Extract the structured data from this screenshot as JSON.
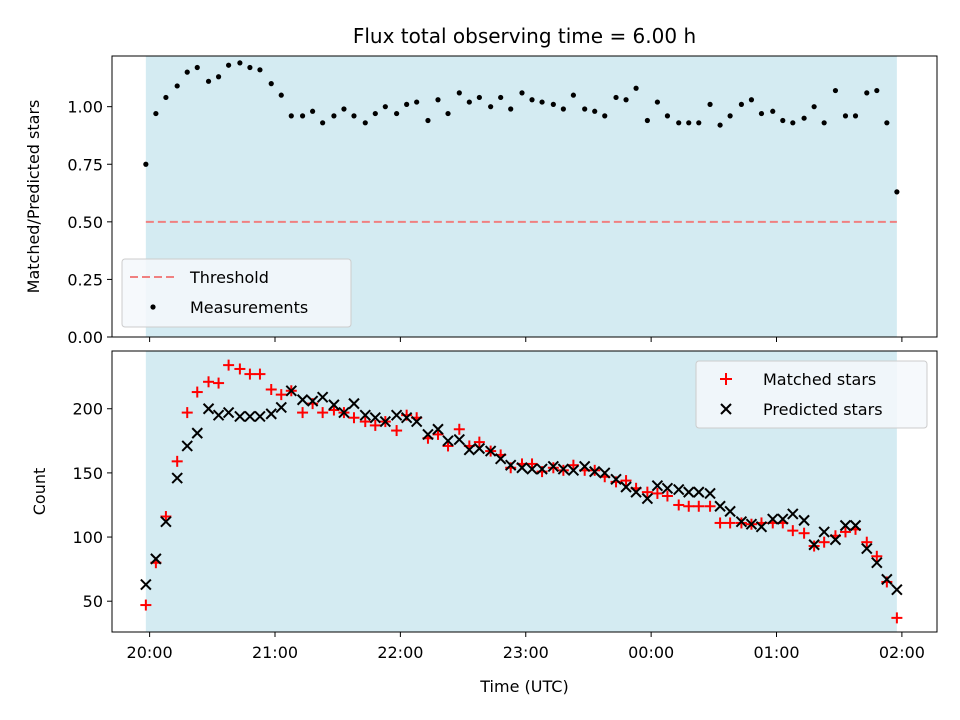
{
  "chart_data": [
    {
      "type": "scatter",
      "title": "Flux total observing time = 6.00 h",
      "ylabel": "Matched/Predicted stars",
      "ylim": [
        0,
        1.22
      ],
      "yticks": [
        "0.00",
        "0.25",
        "0.50",
        "0.75",
        "1.00"
      ],
      "ytick_values": [
        0,
        0.25,
        0.5,
        0.75,
        1.0
      ],
      "shaded_span_hours": [
        19.97,
        25.96
      ],
      "shaded_color": "#d4ebf2",
      "threshold": {
        "name": "Threshold",
        "value": 0.5,
        "x_range_hours": [
          19.97,
          25.96
        ],
        "color": "#f08080"
      },
      "series": [
        {
          "name": "Measurements",
          "color": "#000000",
          "x_hours": [
            19.97,
            20.05,
            20.13,
            20.22,
            20.3,
            20.38,
            20.47,
            20.55,
            20.63,
            20.72,
            20.8,
            20.88,
            20.97,
            21.05,
            21.13,
            21.22,
            21.3,
            21.38,
            21.47,
            21.55,
            21.63,
            21.72,
            21.8,
            21.88,
            21.97,
            22.05,
            22.13,
            22.22,
            22.3,
            22.38,
            22.47,
            22.55,
            22.63,
            22.72,
            22.8,
            22.88,
            22.97,
            23.05,
            23.13,
            23.22,
            23.3,
            23.38,
            23.47,
            23.55,
            23.63,
            23.72,
            23.8,
            23.88,
            23.97,
            24.05,
            24.13,
            24.22,
            24.3,
            24.38,
            24.47,
            24.55,
            24.63,
            24.72,
            24.8,
            24.88,
            24.97,
            25.05,
            25.13,
            25.22,
            25.3,
            25.38,
            25.47,
            25.55,
            25.63,
            25.72,
            25.8,
            25.88,
            25.96
          ],
          "y": [
            0.75,
            0.97,
            1.04,
            1.09,
            1.15,
            1.17,
            1.11,
            1.13,
            1.18,
            1.19,
            1.17,
            1.16,
            1.1,
            1.05,
            0.96,
            0.96,
            0.98,
            0.93,
            0.96,
            0.99,
            0.96,
            0.93,
            0.97,
            1.0,
            0.97,
            1.01,
            1.02,
            0.94,
            1.03,
            0.97,
            1.06,
            1.02,
            1.04,
            1.0,
            1.04,
            0.99,
            1.06,
            1.03,
            1.02,
            1.01,
            0.99,
            1.05,
            0.99,
            0.98,
            0.96,
            1.04,
            1.03,
            1.08,
            0.94,
            1.02,
            0.96,
            0.93,
            0.93,
            0.93,
            1.01,
            0.92,
            0.96,
            1.01,
            1.03,
            0.97,
            0.98,
            0.94,
            0.93,
            0.95,
            1.0,
            0.93,
            1.07,
            0.96,
            0.96,
            1.06,
            1.07,
            0.93,
            0.63
          ]
        }
      ],
      "legend": {
        "placement": "lower-left",
        "entries": [
          "Threshold",
          "Measurements"
        ]
      },
      "grid": false
    },
    {
      "type": "scatter",
      "xlabel": "Time (UTC)",
      "ylabel": "Count",
      "ylim": [
        26,
        245
      ],
      "yticks": [
        "50",
        "100",
        "150",
        "200"
      ],
      "ytick_values": [
        50,
        100,
        150,
        200
      ],
      "xlim_hours": [
        19.7,
        26.28
      ],
      "xticks": [
        "20:00",
        "21:00",
        "22:00",
        "23:00",
        "00:00",
        "01:00",
        "02:00"
      ],
      "xtick_hours": [
        20,
        21,
        22,
        23,
        24,
        25,
        26
      ],
      "shaded_span_hours": [
        19.97,
        25.96
      ],
      "series": [
        {
          "name": "Matched stars",
          "color": "#ff0000",
          "marker": "plus",
          "x_hours": [
            19.97,
            20.05,
            20.13,
            20.22,
            20.3,
            20.38,
            20.47,
            20.55,
            20.63,
            20.72,
            20.8,
            20.88,
            20.97,
            21.05,
            21.13,
            21.22,
            21.3,
            21.38,
            21.47,
            21.55,
            21.63,
            21.72,
            21.8,
            21.88,
            21.97,
            22.05,
            22.13,
            22.22,
            22.3,
            22.38,
            22.47,
            22.55,
            22.63,
            22.72,
            22.8,
            22.88,
            22.97,
            23.05,
            23.13,
            23.22,
            23.3,
            23.38,
            23.47,
            23.55,
            23.63,
            23.72,
            23.8,
            23.88,
            23.97,
            24.05,
            24.13,
            24.22,
            24.3,
            24.38,
            24.47,
            24.55,
            24.63,
            24.72,
            24.8,
            24.88,
            24.97,
            25.05,
            25.13,
            25.22,
            25.3,
            25.38,
            25.47,
            25.55,
            25.63,
            25.72,
            25.8,
            25.88,
            25.96
          ],
          "y": [
            47,
            80,
            116,
            159,
            197,
            213,
            221,
            220,
            234,
            231,
            227,
            227,
            215,
            211,
            214,
            197,
            204,
            197,
            199,
            197,
            193,
            190,
            187,
            190,
            183,
            195,
            193,
            177,
            180,
            171,
            184,
            171,
            174,
            167,
            164,
            154,
            157,
            157,
            151,
            154,
            152,
            156,
            152,
            152,
            147,
            143,
            144,
            138,
            135,
            134,
            132,
            125,
            124,
            124,
            124,
            111,
            111,
            111,
            110,
            111,
            111,
            111,
            105,
            103,
            93,
            96,
            101,
            104,
            106,
            96,
            85,
            65,
            37
          ]
        },
        {
          "name": "Predicted stars",
          "color": "#000000",
          "marker": "x",
          "x_hours": [
            19.97,
            20.05,
            20.13,
            20.22,
            20.3,
            20.38,
            20.47,
            20.55,
            20.63,
            20.72,
            20.8,
            20.88,
            20.97,
            21.05,
            21.13,
            21.22,
            21.3,
            21.38,
            21.47,
            21.55,
            21.63,
            21.72,
            21.8,
            21.88,
            21.97,
            22.05,
            22.13,
            22.22,
            22.3,
            22.38,
            22.47,
            22.55,
            22.63,
            22.72,
            22.8,
            22.88,
            22.97,
            23.05,
            23.13,
            23.22,
            23.3,
            23.38,
            23.47,
            23.55,
            23.63,
            23.72,
            23.8,
            23.88,
            23.97,
            24.05,
            24.13,
            24.22,
            24.3,
            24.38,
            24.47,
            24.55,
            24.63,
            24.72,
            24.8,
            24.88,
            24.97,
            25.05,
            25.13,
            25.22,
            25.3,
            25.38,
            25.47,
            25.55,
            25.63,
            25.72,
            25.8,
            25.88,
            25.96
          ],
          "y": [
            63,
            83,
            112,
            146,
            171,
            181,
            200,
            195,
            197,
            194,
            194,
            194,
            196,
            201,
            214,
            207,
            206,
            209,
            203,
            197,
            204,
            195,
            193,
            190,
            195,
            193,
            190,
            180,
            184,
            175,
            176,
            168,
            169,
            167,
            161,
            156,
            154,
            153,
            153,
            155,
            153,
            152,
            155,
            151,
            150,
            145,
            139,
            135,
            130,
            140,
            138,
            137,
            135,
            135,
            134,
            124,
            120,
            112,
            110,
            108,
            114,
            114,
            118,
            113,
            94,
            104,
            98,
            109,
            109,
            91,
            80,
            67,
            59
          ]
        }
      ],
      "legend": {
        "placement": "upper-right",
        "entries": [
          "Matched stars",
          "Predicted stars"
        ]
      },
      "grid": false
    }
  ]
}
